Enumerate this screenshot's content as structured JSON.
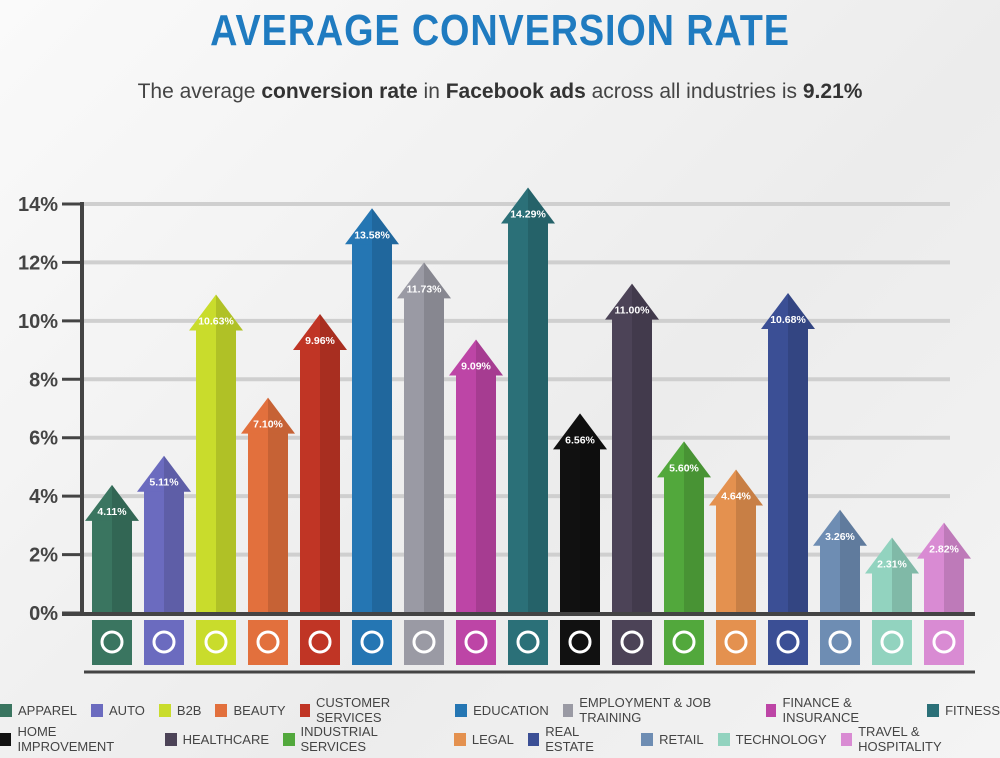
{
  "title": "AVERAGE CONVERSION RATE",
  "subtitle": {
    "prefix": "The average ",
    "bold1": "conversion rate",
    "mid": " in ",
    "bold2": "Facebook ads",
    "suffix": " across all industries is ",
    "bold3": "9.21%"
  },
  "chart_data": {
    "type": "bar",
    "title": "AVERAGE CONVERSION RATE",
    "ylim": [
      0,
      14
    ],
    "yticks": [
      "0%",
      "2%",
      "4%",
      "6%",
      "8%",
      "10%",
      "12%",
      "14%"
    ],
    "grid": true,
    "legend_position": "bottom",
    "categories": [
      "Apparel",
      "Auto",
      "B2B",
      "Beauty",
      "Customer Services",
      "Education",
      "Employment & Job Training",
      "Finance & Insurance",
      "Fitness",
      "Home Improvement",
      "Healthcare",
      "Industrial Services",
      "Legal",
      "Real Estate",
      "Retail",
      "Technology",
      "Travel & Hospitality"
    ],
    "values": [
      4.11,
      5.11,
      10.63,
      7.1,
      9.96,
      13.58,
      11.73,
      9.09,
      14.29,
      6.56,
      11.0,
      5.6,
      4.64,
      10.68,
      3.26,
      2.31,
      2.82
    ],
    "labels": [
      "4.11%",
      "5.11%",
      "10.63%",
      "7.10%",
      "9.96%",
      "13.58%",
      "11.73%",
      "9.09%",
      "14.29%",
      "6.56%",
      "11.00%",
      "5.60%",
      "4.64%",
      "10.68%",
      "3.26%",
      "2.31%",
      "2.82%"
    ],
    "colors": [
      "#3a7560",
      "#6b6bbf",
      "#c9dc2c",
      "#e2703d",
      "#c03525",
      "#2576b3",
      "#9a9aa4",
      "#bd45a6",
      "#2b7078",
      "#111111",
      "#4c4357",
      "#52a83c",
      "#e4914f",
      "#3b4f95",
      "#6e8db3",
      "#92d3bf",
      "#d98bd3"
    ],
    "icons": [
      "tshirt-icon",
      "car-icon",
      "handshake-icon",
      "mirror-icon",
      "headset-icon",
      "book-icon",
      "briefcase-icon",
      "money-bag-icon",
      "muscle-icon",
      "tools-icon",
      "medical-kit-icon",
      "factory-icon",
      "gavel-icon",
      "house-icon",
      "tag-icon",
      "laptop-icon",
      "map-pin-icon"
    ]
  }
}
